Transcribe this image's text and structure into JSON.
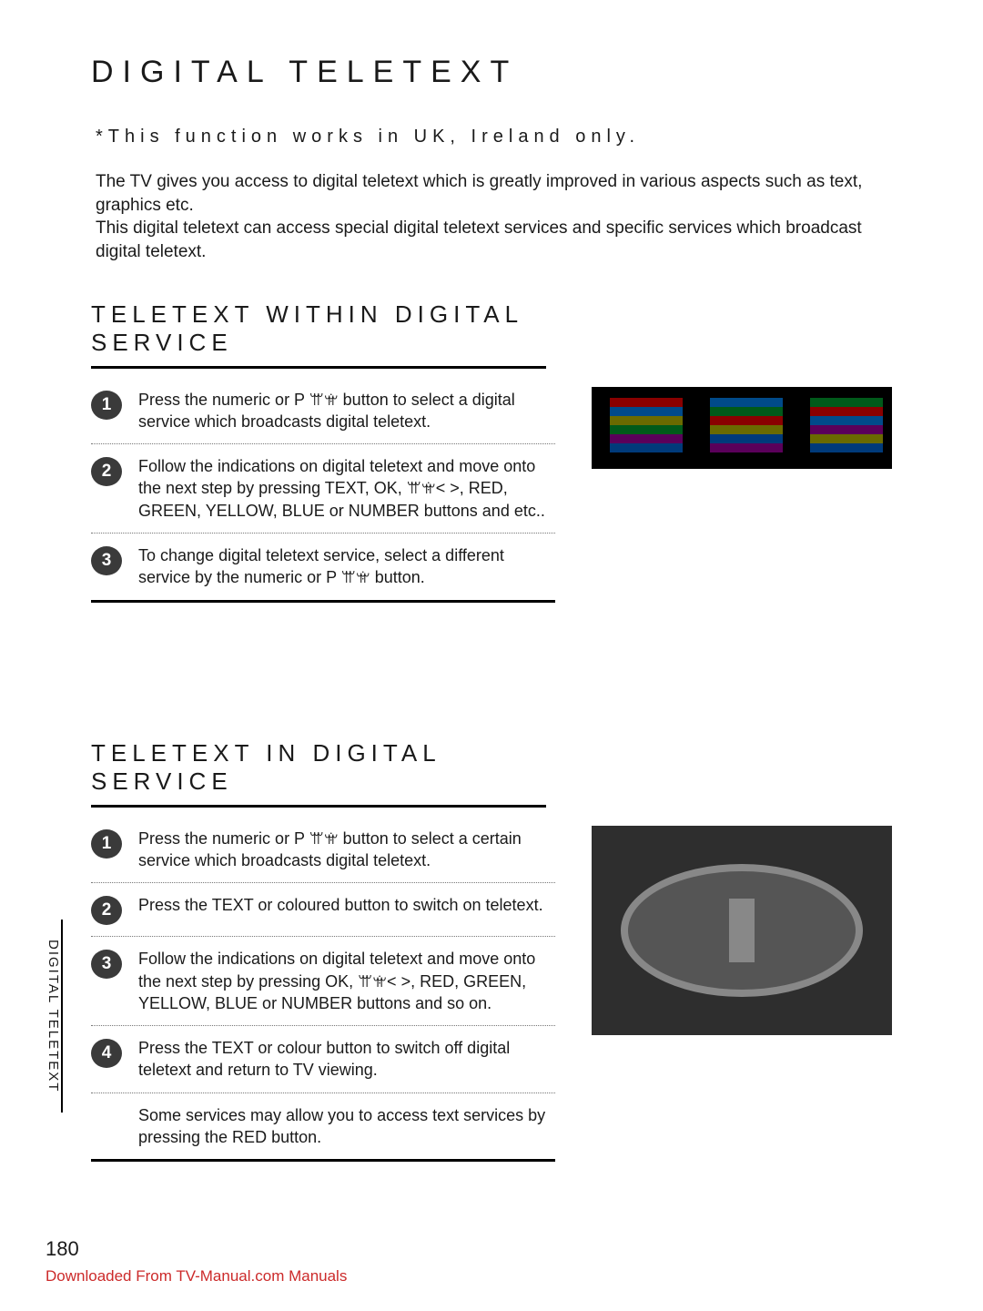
{
  "title": "DIGITAL TELETEXT",
  "intro_note": "*This function works in UK, Ireland only.",
  "intro_para": "The TV gives you access to digital teletext which is greatly improved in various aspects such as text, graphics etc.\nThis digital teletext can access special digital teletext services and specific services which broadcast digital teletext.",
  "section1": {
    "title": "TELETEXT WITHIN DIGITAL SERVICE",
    "steps": [
      "Press the numeric or P ꕌꕍ button to select a digital service which broadcasts digital teletext.",
      "Follow the indications on digital teletext and move onto the next step by pressing TEXT, OK, ꕌꕍ< >, RED, GREEN, YELLOW, BLUE or NUMBER buttons and etc..",
      "To change digital teletext service, select a different service by the numeric or P ꕌꕍ button."
    ]
  },
  "section2": {
    "title": "TELETEXT IN DIGITAL SERVICE",
    "steps": [
      "Press the numeric or P ꕌꕍ button to select a certain service which broadcasts digital teletext.",
      "Press the TEXT or coloured button to switch on teletext.",
      "Follow the indications on digital teletext and move onto the next step by pressing OK, ꕌꕍ< >, RED, GREEN, YELLOW, BLUE or NUMBER buttons and so on.",
      "Press the TEXT or colour button to switch off digital teletext and return to TV viewing."
    ],
    "footnote": "Some services may allow you to access text services by pressing the RED button."
  },
  "side_tab": "DIGITAL TELETEXT",
  "page_number": "180",
  "download_text": "Downloaded From TV-Manual.com Manuals",
  "colors": {
    "text": "#1a1a1a",
    "accent_red": "#cc2a2a",
    "step_circle": "#3a3a3a",
    "rule": "#000000"
  }
}
